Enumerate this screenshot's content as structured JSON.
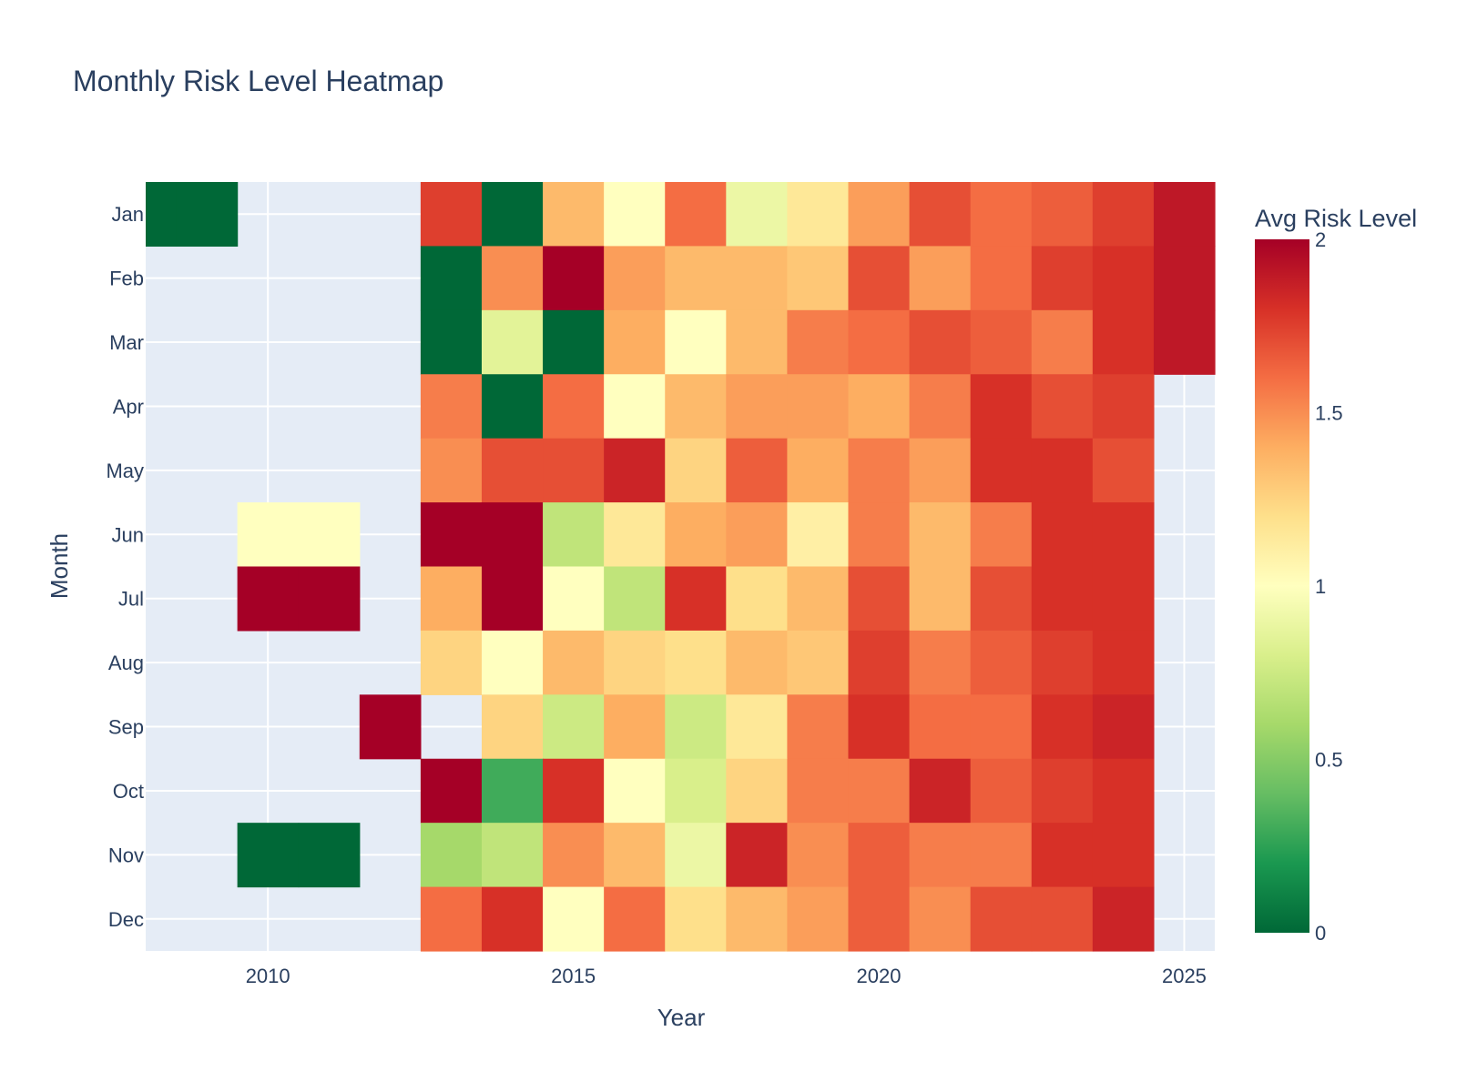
{
  "chart_data": {
    "type": "heatmap",
    "title": "Monthly Risk Level Heatmap",
    "xlabel": "Year",
    "ylabel": "Month",
    "x": [
      2008,
      2009,
      2010,
      2011,
      2012,
      2013,
      2014,
      2015,
      2016,
      2017,
      2018,
      2019,
      2020,
      2021,
      2022,
      2023,
      2024,
      2025
    ],
    "x_ticks": [
      2010,
      2015,
      2020,
      2025
    ],
    "xlim": [
      2008,
      2025.5
    ],
    "months": [
      "Jan",
      "Feb",
      "Mar",
      "Apr",
      "May",
      "Jun",
      "Jul",
      "Aug",
      "Sep",
      "Oct",
      "Nov",
      "Dec"
    ],
    "z": [
      [
        0,
        0,
        null,
        null,
        null,
        1.75,
        0,
        1.35,
        1.0,
        1.6,
        0.9,
        1.15,
        1.45,
        1.7,
        1.6,
        1.65,
        1.75,
        1.9
      ],
      [
        null,
        null,
        null,
        null,
        null,
        0,
        1.5,
        2.0,
        1.45,
        1.35,
        1.35,
        1.3,
        1.7,
        1.45,
        1.6,
        1.75,
        1.8,
        1.9
      ],
      [
        null,
        null,
        null,
        null,
        null,
        0,
        0.85,
        0,
        1.4,
        1.0,
        1.35,
        1.55,
        1.6,
        1.7,
        1.65,
        1.55,
        1.8,
        1.9
      ],
      [
        null,
        null,
        null,
        null,
        null,
        1.55,
        0,
        1.6,
        1.0,
        1.35,
        1.45,
        1.45,
        1.4,
        1.55,
        1.8,
        1.7,
        1.75,
        null
      ],
      [
        null,
        null,
        null,
        null,
        null,
        1.5,
        1.7,
        1.7,
        1.85,
        1.25,
        1.65,
        1.4,
        1.55,
        1.45,
        1.8,
        1.8,
        1.7,
        null
      ],
      [
        null,
        null,
        1.0,
        1.0,
        null,
        2.0,
        2.0,
        0.7,
        1.15,
        1.4,
        1.45,
        1.1,
        1.55,
        1.35,
        1.55,
        1.8,
        1.8,
        null
      ],
      [
        null,
        null,
        2.0,
        2.0,
        null,
        1.4,
        2.0,
        1.0,
        0.7,
        1.8,
        1.2,
        1.35,
        1.7,
        1.35,
        1.7,
        1.8,
        1.8,
        null
      ],
      [
        null,
        null,
        null,
        null,
        null,
        1.25,
        1.0,
        1.35,
        1.25,
        1.2,
        1.35,
        1.3,
        1.75,
        1.55,
        1.65,
        1.75,
        1.8,
        null
      ],
      [
        null,
        null,
        null,
        null,
        2.0,
        null,
        1.25,
        0.75,
        1.4,
        0.75,
        1.15,
        1.55,
        1.8,
        1.6,
        1.6,
        1.8,
        1.85,
        null
      ],
      [
        null,
        null,
        null,
        null,
        null,
        2.0,
        0.3,
        1.8,
        1.0,
        0.8,
        1.25,
        1.55,
        1.55,
        1.85,
        1.65,
        1.75,
        1.8,
        null
      ],
      [
        null,
        null,
        0,
        0,
        null,
        0.6,
        0.7,
        1.5,
        1.35,
        0.9,
        1.85,
        1.5,
        1.65,
        1.55,
        1.55,
        1.8,
        1.8,
        null
      ],
      [
        null,
        null,
        null,
        null,
        null,
        1.6,
        1.8,
        1.0,
        1.6,
        1.2,
        1.35,
        1.45,
        1.65,
        1.5,
        1.7,
        1.7,
        1.85,
        null
      ]
    ],
    "colorscale": "RdYlGn (reversed)",
    "colorbar": {
      "title": "Avg Risk Level",
      "range": [
        0,
        2
      ],
      "ticks": [
        "0",
        "0.5",
        "1",
        "1.5",
        "2"
      ]
    },
    "colors": {
      "plot_background": "#e5ecf6",
      "gridline": "#ffffff",
      "text": "#2a3f5f"
    },
    "grid": true
  }
}
